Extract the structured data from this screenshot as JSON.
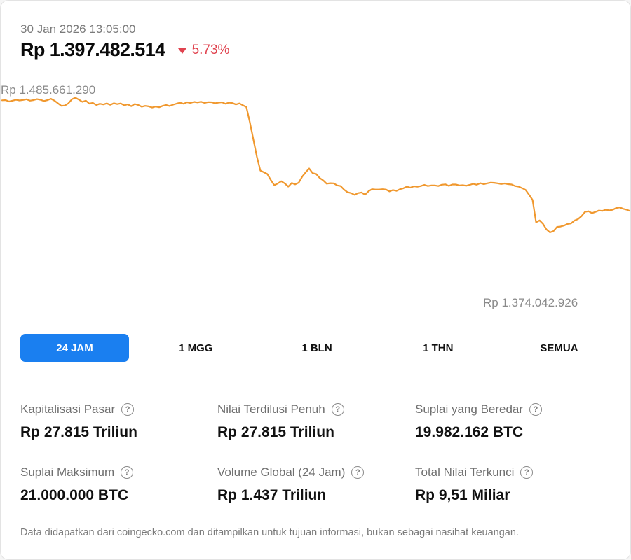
{
  "header": {
    "timestamp": "30 Jan 2026 13:05:00",
    "price": "Rp 1.397.482.514",
    "change": "5.73%",
    "change_direction": "down",
    "change_color": "#e0434f"
  },
  "chart_data": {
    "type": "line",
    "high_label": "Rp 1.485.661.290",
    "low_label": "Rp 1.374.042.926",
    "ylim": [
      1374042926,
      1485661290
    ],
    "line_color": "#f0982e",
    "grid": false,
    "series": [
      {
        "values": [
          1482700000,
          1482800000,
          1482000000,
          1482500000,
          1483000000,
          1482600000,
          1482900000,
          1483300000,
          1482500000,
          1482800000,
          1483400000,
          1483000000,
          1482300000,
          1482800000,
          1483600000,
          1482500000,
          1481000000,
          1479500000,
          1479700000,
          1481000000,
          1483300000,
          1484200000,
          1483100000,
          1481800000,
          1482500000,
          1480800000,
          1481200000,
          1480000000,
          1480700000,
          1480300000,
          1480900000,
          1480100000,
          1481000000,
          1480500000,
          1480900000,
          1479800000,
          1480400000,
          1479300000,
          1480600000,
          1480000000,
          1479000000,
          1479500000,
          1479200000,
          1478500000,
          1479100000,
          1478700000,
          1479500000,
          1480000000,
          1479400000,
          1480200000,
          1480800000,
          1481300000,
          1480700000,
          1481600000,
          1481200000,
          1481800000,
          1481500000,
          1481900000,
          1481200000,
          1481700000,
          1481600000,
          1481000000,
          1481400000,
          1481600000,
          1480700000,
          1481400000,
          1481100000,
          1480300000,
          1480900000,
          1479800000,
          1478800000,
          1470000000,
          1460000000,
          1450000000,
          1442000000,
          1441000000,
          1440000000,
          1436500000,
          1433500000,
          1434500000,
          1435800000,
          1434500000,
          1432700000,
          1434800000,
          1434000000,
          1435000000,
          1438500000,
          1441000000,
          1443200000,
          1440500000,
          1440000000,
          1437700000,
          1436300000,
          1434400000,
          1434700000,
          1434600000,
          1433400000,
          1433000000,
          1430900000,
          1429400000,
          1428900000,
          1427900000,
          1428900000,
          1429300000,
          1428000000,
          1430000000,
          1431200000,
          1431000000,
          1431000000,
          1431200000,
          1431000000,
          1429900000,
          1430700000,
          1430200000,
          1431200000,
          1431700000,
          1432700000,
          1432100000,
          1432900000,
          1432600000,
          1433000000,
          1433700000,
          1433000000,
          1433400000,
          1433400000,
          1433000000,
          1433800000,
          1434000000,
          1433100000,
          1433900000,
          1433900000,
          1433400000,
          1433500000,
          1433200000,
          1433700000,
          1434300000,
          1433800000,
          1434700000,
          1434100000,
          1434600000,
          1435000000,
          1434900000,
          1434600000,
          1434200000,
          1434500000,
          1434100000,
          1433900000,
          1433000000,
          1432700000,
          1431800000,
          1430800000,
          1428000000,
          1425000000,
          1412000000,
          1413100000,
          1411000000,
          1407800000,
          1406100000,
          1406900000,
          1409300000,
          1409500000,
          1410100000,
          1411000000,
          1411300000,
          1413000000,
          1413800000,
          1415500000,
          1418000000,
          1418400000,
          1417300000,
          1418000000,
          1418800000,
          1418600000,
          1419300000,
          1418900000,
          1419300000,
          1420300000,
          1420600000,
          1419800000,
          1419300000,
          1418500000
        ]
      }
    ]
  },
  "tabs": [
    {
      "label": "24 JAM",
      "active": true
    },
    {
      "label": "1 MGG",
      "active": false
    },
    {
      "label": "1 BLN",
      "active": false
    },
    {
      "label": "1 THN",
      "active": false
    },
    {
      "label": "SEMUA",
      "active": false
    }
  ],
  "stats": [
    {
      "label": "Kapitalisasi Pasar",
      "value": "Rp 27.815 Triliun"
    },
    {
      "label": "Nilai Terdilusi Penuh",
      "value": "Rp 27.815 Triliun"
    },
    {
      "label": "Suplai yang Beredar",
      "value": "19.982.162 BTC"
    },
    {
      "label": "Suplai Maksimum",
      "value": "21.000.000 BTC"
    },
    {
      "label": "Volume Global (24 Jam)",
      "value": "Rp 1.437 Triliun"
    },
    {
      "label": "Total Nilai Terkunci",
      "value": "Rp 9,51 Miliar"
    }
  ],
  "help_icon": {
    "glyph": "?",
    "icon": "question-circle-icon"
  },
  "disclaimer": "Data didapatkan dari coingecko.com dan ditampilkan untuk tujuan informasi, bukan sebagai nasihat keuangan."
}
